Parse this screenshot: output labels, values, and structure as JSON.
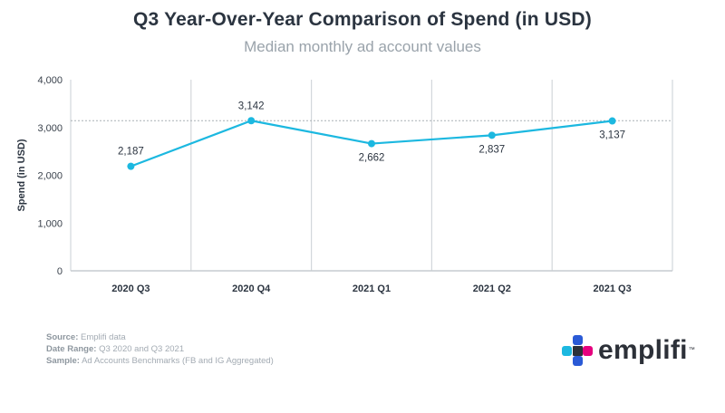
{
  "header": {
    "title": "Q3 Year-Over-Year Comparison of Spend (in USD)",
    "subtitle": "Median monthly ad account values"
  },
  "chart_data": {
    "type": "line",
    "title": "Q3 Year-Over-Year Comparison of Spend (in USD)",
    "subtitle": "Median monthly ad account values",
    "xlabel": "",
    "ylabel": "Spend (in USD)",
    "categories": [
      "2020 Q3",
      "2020 Q4",
      "2021 Q1",
      "2021 Q2",
      "2021 Q3"
    ],
    "series": [
      {
        "name": "Spend",
        "values": [
          2187,
          3142,
          2662,
          2837,
          3137
        ],
        "labels": [
          "2,187",
          "3,142",
          "2,662",
          "2,837",
          "3,137"
        ]
      }
    ],
    "ylim": [
      0,
      4000
    ],
    "yticks": [
      0,
      1000,
      2000,
      3000,
      4000
    ],
    "ytick_labels": [
      "0",
      "1,000",
      "2,000",
      "3,000",
      "4,000"
    ],
    "reference_line": 3142,
    "grid": "vertical",
    "line_color": "#1cb8e0"
  },
  "footer": {
    "source_label": "Source:",
    "source_value": "Emplifi data",
    "date_label": "Date Range:",
    "date_value": "Q3 2020 and Q3 2021",
    "sample_label": "Sample:",
    "sample_value": "Ad Accounts Benchmarks (FB and IG Aggregated)"
  },
  "brand": {
    "name": "emplifi",
    "trademark": "™",
    "logo_colors": [
      "#1cb8e0",
      "#2a5ad6",
      "#e5007e",
      "#2c3038"
    ]
  }
}
